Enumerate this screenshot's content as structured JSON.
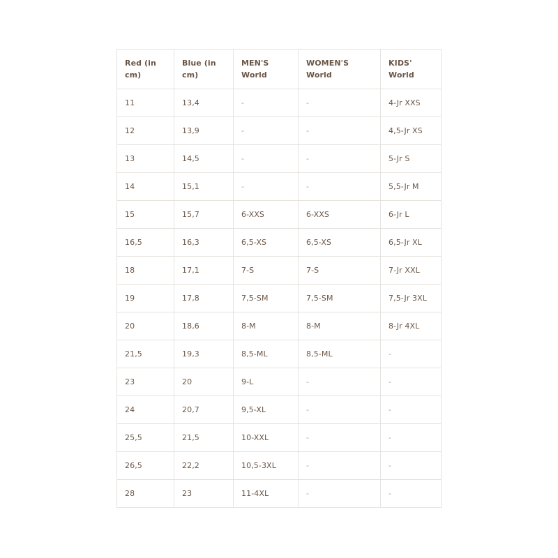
{
  "table": {
    "header": [
      "Red (in cm)",
      "Blue (in cm)",
      "MEN'S World",
      "WOMEN'S World",
      "KIDS' World"
    ],
    "rows": [
      [
        "11",
        "13,4",
        "-",
        "-",
        "4-Jr XXS"
      ],
      [
        "12",
        "13,9",
        "-",
        "-",
        "4,5-Jr XS"
      ],
      [
        "13",
        "14,5",
        "-",
        "-",
        "5-Jr S"
      ],
      [
        "14",
        "15,1",
        "-",
        "-",
        "5,5-Jr M"
      ],
      [
        "15",
        "15,7",
        "6-XXS",
        "6-XXS",
        "6-Jr L"
      ],
      [
        "16,5",
        "16,3",
        "6,5-XS",
        "6,5-XS",
        "6,5-Jr XL"
      ],
      [
        "18",
        "17,1",
        "7-S",
        "7-S",
        "7-Jr XXL"
      ],
      [
        "19",
        "17,8",
        "7,5-SM",
        "7,5-SM",
        "7,5-Jr 3XL"
      ],
      [
        "20",
        "18,6",
        "8-M",
        "8-M",
        "8-Jr 4XL"
      ],
      [
        "21,5",
        "19,3",
        "8,5-ML",
        "8,5-ML",
        "-"
      ],
      [
        "23",
        "20",
        "9-L",
        "-",
        "-"
      ],
      [
        "24",
        "20,7",
        "9,5-XL",
        "-",
        "-"
      ],
      [
        "25,5",
        "21,5",
        "10-XXL",
        "-",
        "-"
      ],
      [
        "26,5",
        "22,2",
        "10,5-3XL",
        "-",
        "-"
      ],
      [
        "28",
        "23",
        "11-4XL",
        "-",
        "-"
      ]
    ]
  }
}
